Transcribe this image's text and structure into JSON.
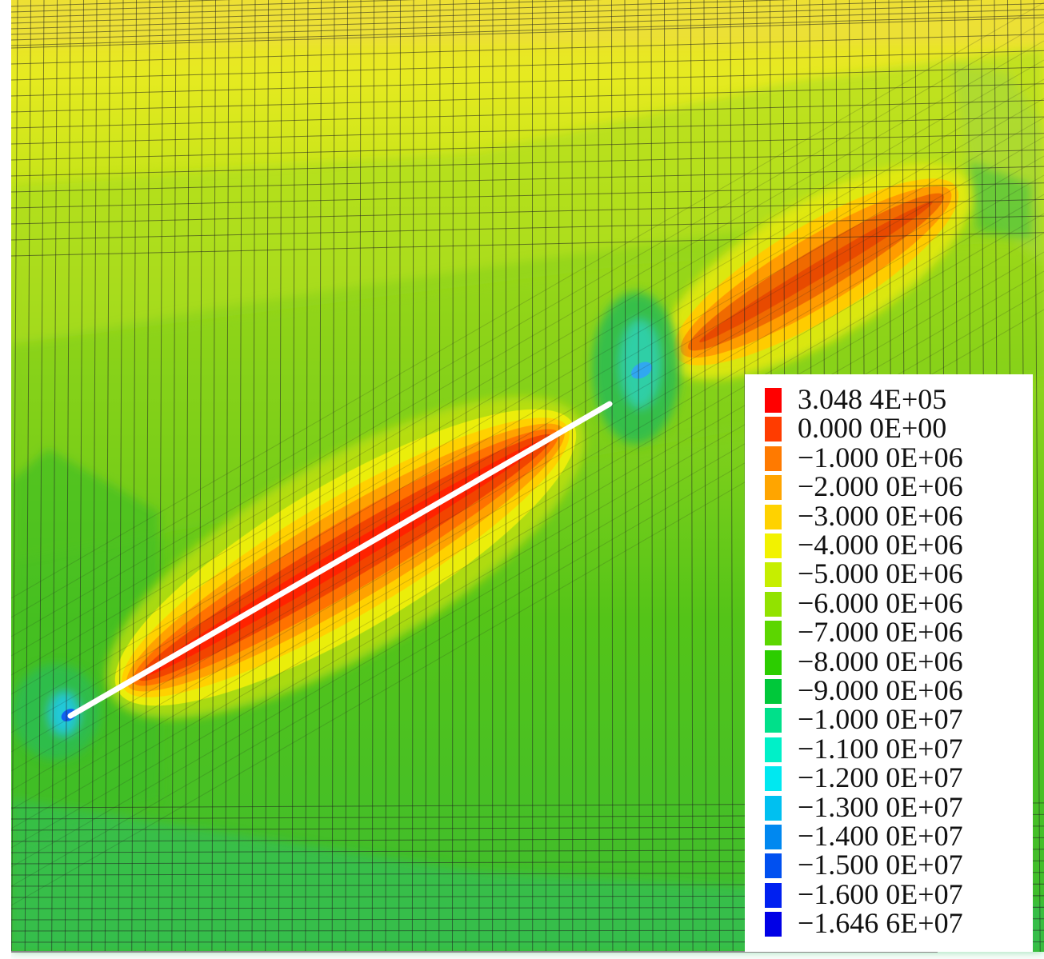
{
  "legend": {
    "entries": [
      {
        "label": "3.048 4E+05",
        "color": "#ff0000"
      },
      {
        "label": "0.000 0E+00",
        "color": "#ff3c00"
      },
      {
        "label": "−1.000 0E+06",
        "color": "#ff7a00"
      },
      {
        "label": "−2.000 0E+06",
        "color": "#ffa500"
      },
      {
        "label": "−3.000 0E+06",
        "color": "#ffd200"
      },
      {
        "label": "−4.000 0E+06",
        "color": "#f2f200"
      },
      {
        "label": "−5.000 0E+06",
        "color": "#c6ee00"
      },
      {
        "label": "−6.000 0E+06",
        "color": "#92e200"
      },
      {
        "label": "−7.000 0E+06",
        "color": "#5cd600"
      },
      {
        "label": "−8.000 0E+06",
        "color": "#2ccd00"
      },
      {
        "label": "−9.000 0E+06",
        "color": "#00c83a"
      },
      {
        "label": "−1.000 0E+07",
        "color": "#00e08a"
      },
      {
        "label": "−1.100 0E+07",
        "color": "#00f0c8"
      },
      {
        "label": "−1.200 0E+07",
        "color": "#00e8f0"
      },
      {
        "label": "−1.300 0E+07",
        "color": "#00c0f0"
      },
      {
        "label": "−1.400 0E+07",
        "color": "#0088f0"
      },
      {
        "label": "−1.500 0E+07",
        "color": "#0050f0"
      },
      {
        "label": "−1.600 0E+07",
        "color": "#0020f0"
      },
      {
        "label": "−1.646 6E+07",
        "color": "#0000e6"
      }
    ]
  }
}
